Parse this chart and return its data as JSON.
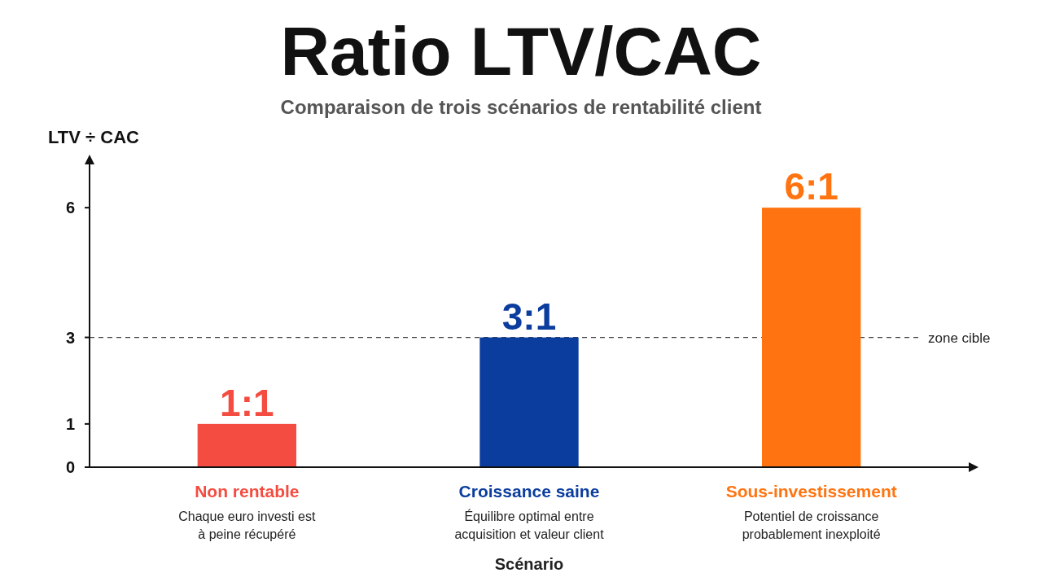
{
  "chart_data": {
    "type": "bar",
    "title": "Ratio LTV/CAC",
    "subtitle": "Comparaison de trois scénarios de rentabilité client",
    "xlabel": "Scénario",
    "ylabel": "LTV ÷ CAC",
    "categories": [
      "Non rentable",
      "Croissance saine",
      "Sous-investissement"
    ],
    "values": [
      1,
      3,
      6
    ],
    "colors": [
      "#f44c40",
      "#0b3d9e",
      "#ff7410"
    ],
    "value_labels": [
      "1:1",
      "3:1",
      "6:1"
    ],
    "ylim": [
      0,
      7
    ],
    "yticks": [
      0,
      1,
      3,
      6
    ],
    "grid": false,
    "ref_lines": [
      {
        "axis": "y",
        "value": 3,
        "label": "zone cible",
        "line_style": "dashed",
        "color": "#444444"
      }
    ],
    "annotations": [
      "Chaque euro investi est\nà peine récupéré",
      "Équilibre optimal entre\nacquisition et valeur client",
      "Potentiel de croissance\nprobablement inexploité"
    ]
  }
}
